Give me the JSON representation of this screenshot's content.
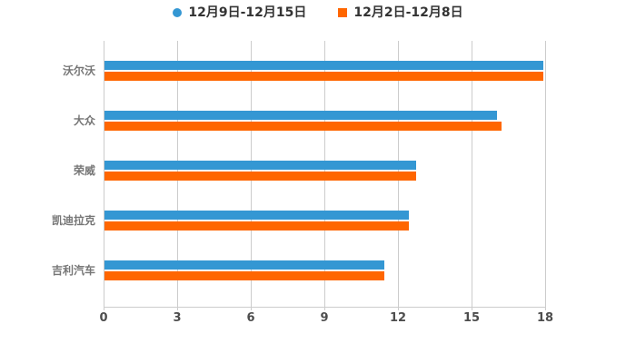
{
  "chart_data": {
    "type": "bar",
    "orientation": "horizontal",
    "title": "",
    "xlabel": "",
    "ylabel": "",
    "categories": [
      "沃尔沃",
      "大众",
      "荣威",
      "凯迪拉克",
      "吉利汽车"
    ],
    "series": [
      {
        "name": "12月9日-12月15日",
        "color": "#3497d3",
        "marker": "circle",
        "values": [
          17.9,
          16.0,
          12.7,
          12.4,
          11.4
        ]
      },
      {
        "name": "12月2日-12月8日",
        "color": "#ff6600",
        "marker": "square",
        "values": [
          17.9,
          16.2,
          12.7,
          12.4,
          11.4
        ]
      }
    ],
    "xlim": [
      0,
      18
    ],
    "xticks": [
      0,
      3,
      6,
      9,
      12,
      15,
      18
    ],
    "grid": "vertical",
    "legend_position": "top-center",
    "background_color": "#ffffff",
    "grid_color": "#cccccc"
  }
}
